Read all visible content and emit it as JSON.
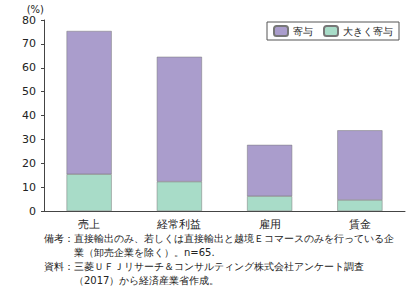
{
  "chart_data": {
    "type": "bar",
    "stacked": true,
    "y_label": "(%)",
    "categories": [
      "売上",
      "経常利益",
      "雇用",
      "賃金"
    ],
    "series": [
      {
        "name": "大きく寄与",
        "color": "#a8dcc8",
        "values": [
          15.4,
          12.3,
          6.2,
          4.6
        ]
      },
      {
        "name": "寄与",
        "color": "#aa9dcc",
        "values": [
          60.0,
          52.3,
          21.5,
          29.2
        ]
      }
    ],
    "ylim": [
      0,
      80
    ],
    "yticks": [
      0,
      10,
      20,
      30,
      40,
      50,
      60,
      70,
      80
    ],
    "grid": false,
    "legend": "top-right",
    "data_labels": false,
    "notes": [
      "備考：直接輸出のみ、若しくは直接輸出と越境Ｅコマースのみを行っている企業（卸売企業を除く）。n=65.",
      "資料：三菱ＵＦＪリサーチ＆コンサルティング株式会社アンケート調査（2017）から経済産業省作成。"
    ]
  }
}
